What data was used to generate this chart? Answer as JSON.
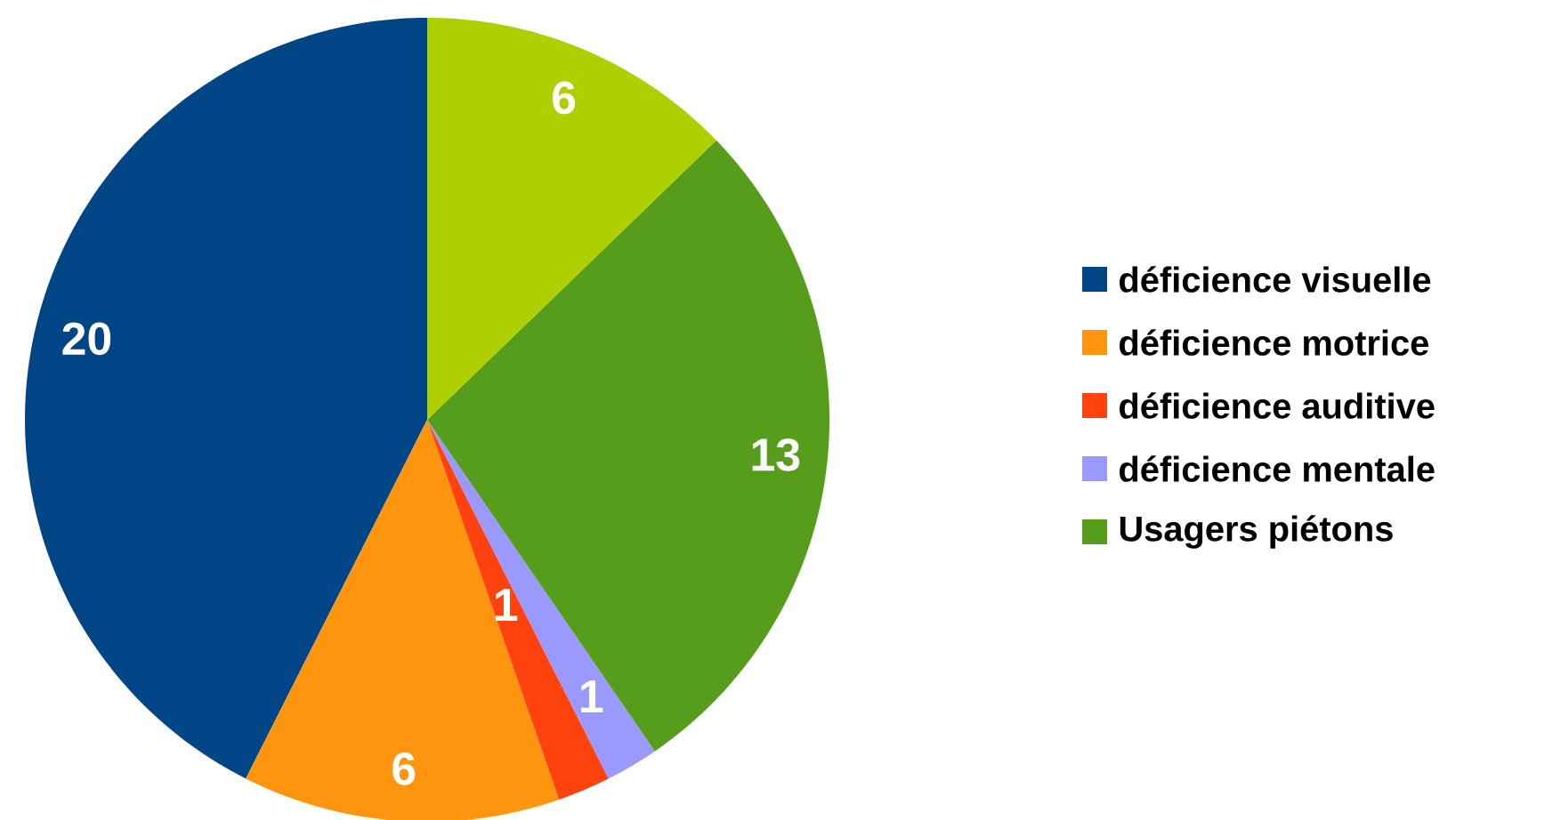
{
  "chart_data": {
    "type": "pie",
    "categories": [
      "déficience visuelle",
      "déficience motrice",
      "déficience auditive",
      "déficience mentale",
      "Usagers piétons",
      null
    ],
    "values": [
      20,
      6,
      1,
      1,
      13,
      6
    ],
    "colors": [
      "#004586",
      "#ff950e",
      "#ff420e",
      "#9999ff",
      "#579d1c",
      "#aecf00"
    ],
    "data_labels": true,
    "legend": "right"
  }
}
